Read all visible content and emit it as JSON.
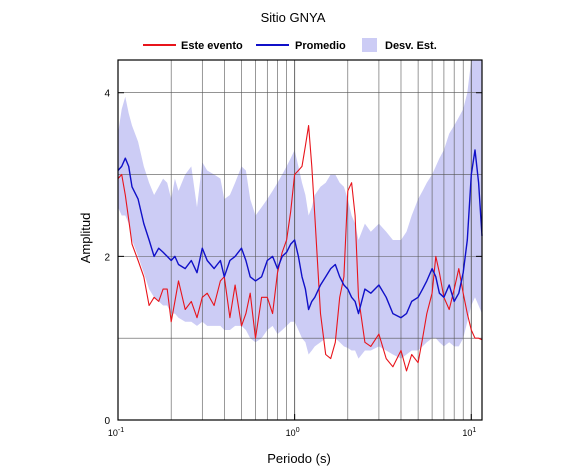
{
  "chart_data": {
    "type": "line",
    "title": "Sitio GNYA",
    "xlabel": "Periodo (s)",
    "ylabel": "Amplitud",
    "x_scale": "log",
    "xlim": [
      0.1,
      11.5
    ],
    "ylim": [
      0,
      4.4
    ],
    "grid": true,
    "legend_position": "top",
    "x_ticks": [
      {
        "value": 0.1,
        "base": "10",
        "exp": "-1"
      },
      {
        "value": 1,
        "base": "10",
        "exp": "0"
      },
      {
        "value": 10,
        "base": "10",
        "exp": "1"
      }
    ],
    "y_ticks": [
      0,
      2,
      4
    ],
    "y_tick_labels": [
      "0",
      "2",
      "4"
    ],
    "legend": [
      {
        "label": "Este evento",
        "kind": "line",
        "color": "#e8141b"
      },
      {
        "label": "Promedio",
        "kind": "line",
        "color": "#1010c8"
      },
      {
        "label": "Desv. Est.",
        "kind": "band",
        "color": "#ccccf5"
      }
    ],
    "series": [
      {
        "name": "Este evento",
        "color": "#e8141b",
        "x": [
          0.1,
          0.105,
          0.11,
          0.115,
          0.12,
          0.13,
          0.14,
          0.15,
          0.16,
          0.17,
          0.18,
          0.19,
          0.2,
          0.21,
          0.22,
          0.24,
          0.26,
          0.28,
          0.3,
          0.32,
          0.35,
          0.38,
          0.4,
          0.43,
          0.46,
          0.5,
          0.53,
          0.56,
          0.6,
          0.65,
          0.7,
          0.75,
          0.8,
          0.85,
          0.9,
          0.95,
          1.0,
          1.05,
          1.1,
          1.15,
          1.2,
          1.25,
          1.3,
          1.4,
          1.5,
          1.6,
          1.7,
          1.8,
          1.9,
          2.0,
          2.1,
          2.2,
          2.3,
          2.5,
          2.7,
          3.0,
          3.3,
          3.6,
          4.0,
          4.3,
          4.6,
          5.0,
          5.3,
          5.6,
          6.0,
          6.3,
          6.6,
          7.0,
          7.5,
          8.0,
          8.5,
          9.0,
          9.5,
          10.0,
          10.5,
          11.0,
          11.5
        ],
        "values": [
          2.95,
          3.0,
          2.75,
          2.45,
          2.15,
          1.95,
          1.75,
          1.4,
          1.5,
          1.45,
          1.6,
          1.6,
          1.2,
          1.45,
          1.7,
          1.35,
          1.45,
          1.25,
          1.5,
          1.55,
          1.4,
          1.7,
          1.75,
          1.25,
          1.65,
          1.15,
          1.3,
          1.55,
          1.0,
          1.5,
          1.5,
          1.3,
          1.8,
          2.05,
          2.2,
          2.55,
          3.0,
          3.05,
          3.1,
          3.35,
          3.6,
          3.1,
          2.5,
          1.3,
          0.8,
          0.75,
          0.95,
          1.5,
          1.75,
          2.8,
          2.9,
          2.5,
          1.5,
          0.95,
          0.9,
          1.05,
          0.75,
          0.65,
          0.85,
          0.6,
          0.8,
          0.7,
          1.0,
          1.3,
          1.55,
          2.0,
          1.8,
          1.5,
          1.35,
          1.6,
          1.85,
          1.55,
          1.3,
          1.1,
          1.0,
          1.0,
          0.98
        ]
      },
      {
        "name": "Promedio",
        "color": "#1010c8",
        "x": [
          0.1,
          0.105,
          0.11,
          0.115,
          0.12,
          0.13,
          0.14,
          0.15,
          0.16,
          0.17,
          0.18,
          0.19,
          0.2,
          0.21,
          0.22,
          0.24,
          0.26,
          0.28,
          0.3,
          0.32,
          0.35,
          0.38,
          0.4,
          0.43,
          0.46,
          0.5,
          0.53,
          0.56,
          0.6,
          0.65,
          0.7,
          0.75,
          0.8,
          0.85,
          0.9,
          0.95,
          1.0,
          1.05,
          1.1,
          1.15,
          1.2,
          1.25,
          1.3,
          1.4,
          1.5,
          1.6,
          1.7,
          1.8,
          1.9,
          2.0,
          2.1,
          2.2,
          2.3,
          2.5,
          2.7,
          3.0,
          3.3,
          3.6,
          4.0,
          4.3,
          4.6,
          5.0,
          5.3,
          5.6,
          6.0,
          6.3,
          6.6,
          7.0,
          7.5,
          8.0,
          8.5,
          9.0,
          9.5,
          10.0,
          10.5,
          11.0,
          11.5
        ],
        "values": [
          3.05,
          3.1,
          3.2,
          3.1,
          2.85,
          2.7,
          2.4,
          2.2,
          2.0,
          2.1,
          2.05,
          2.0,
          1.95,
          2.0,
          1.9,
          1.85,
          1.95,
          1.8,
          2.1,
          1.95,
          1.85,
          1.95,
          1.75,
          1.95,
          2.0,
          2.1,
          1.95,
          1.75,
          1.7,
          1.75,
          1.95,
          2.0,
          1.85,
          2.0,
          2.05,
          2.15,
          2.2,
          2.0,
          1.75,
          1.6,
          1.35,
          1.45,
          1.5,
          1.65,
          1.75,
          1.85,
          1.9,
          1.75,
          1.65,
          1.6,
          1.5,
          1.45,
          1.3,
          1.6,
          1.55,
          1.65,
          1.5,
          1.3,
          1.25,
          1.3,
          1.45,
          1.5,
          1.6,
          1.7,
          1.85,
          1.75,
          1.55,
          1.5,
          1.65,
          1.45,
          1.55,
          1.8,
          2.2,
          3.0,
          3.3,
          2.9,
          2.25
        ]
      },
      {
        "name": "Desv. Est.",
        "color": "#ccccf5",
        "x": [
          0.1,
          0.105,
          0.11,
          0.115,
          0.12,
          0.13,
          0.14,
          0.15,
          0.16,
          0.17,
          0.18,
          0.19,
          0.2,
          0.21,
          0.22,
          0.24,
          0.26,
          0.28,
          0.3,
          0.32,
          0.35,
          0.38,
          0.4,
          0.43,
          0.46,
          0.5,
          0.53,
          0.56,
          0.6,
          0.65,
          0.7,
          0.75,
          0.8,
          0.85,
          0.9,
          0.95,
          1.0,
          1.05,
          1.1,
          1.15,
          1.2,
          1.25,
          1.3,
          1.4,
          1.5,
          1.6,
          1.7,
          1.8,
          1.9,
          2.0,
          2.1,
          2.2,
          2.3,
          2.5,
          2.7,
          3.0,
          3.3,
          3.6,
          4.0,
          4.3,
          4.6,
          5.0,
          5.3,
          5.6,
          6.0,
          6.3,
          6.6,
          7.0,
          7.5,
          8.0,
          8.5,
          9.0,
          9.5,
          10.0,
          10.5,
          11.0,
          11.5
        ],
        "upper": [
          3.5,
          3.8,
          3.95,
          3.75,
          3.6,
          3.4,
          3.1,
          2.9,
          2.75,
          2.85,
          2.95,
          2.9,
          2.7,
          2.95,
          2.8,
          3.0,
          3.1,
          2.6,
          3.15,
          3.05,
          3.0,
          2.95,
          2.7,
          2.75,
          2.9,
          3.1,
          3.05,
          2.7,
          2.5,
          2.6,
          2.7,
          2.8,
          2.9,
          3.0,
          3.1,
          3.2,
          3.3,
          3.1,
          2.9,
          2.75,
          2.5,
          2.6,
          2.75,
          2.85,
          2.9,
          3.0,
          3.0,
          2.9,
          2.85,
          2.7,
          2.5,
          2.4,
          2.2,
          2.4,
          2.3,
          2.4,
          2.3,
          2.2,
          2.2,
          2.3,
          2.5,
          2.7,
          2.8,
          2.9,
          3.0,
          3.1,
          3.2,
          3.3,
          3.5,
          3.6,
          3.7,
          3.8,
          4.0,
          4.4,
          4.4,
          4.4,
          4.4
        ],
        "lower": [
          2.6,
          2.5,
          2.5,
          2.4,
          2.2,
          2.0,
          1.8,
          1.6,
          1.5,
          1.45,
          1.4,
          1.4,
          1.3,
          1.3,
          1.25,
          1.2,
          1.2,
          1.15,
          1.2,
          1.15,
          1.15,
          1.15,
          1.1,
          1.1,
          1.15,
          1.15,
          1.1,
          1.0,
          0.95,
          1.0,
          1.1,
          1.15,
          1.05,
          1.1,
          1.15,
          1.2,
          1.2,
          1.1,
          1.0,
          0.95,
          0.8,
          0.85,
          0.9,
          0.95,
          1.0,
          1.0,
          1.0,
          0.95,
          0.9,
          0.88,
          0.85,
          0.85,
          0.75,
          0.85,
          0.85,
          0.9,
          0.85,
          0.8,
          0.75,
          0.8,
          0.85,
          0.85,
          0.9,
          0.95,
          1.0,
          1.0,
          0.95,
          0.9,
          0.95,
          0.9,
          0.9,
          1.0,
          1.2,
          1.4,
          1.5,
          1.4,
          1.3
        ]
      }
    ]
  }
}
